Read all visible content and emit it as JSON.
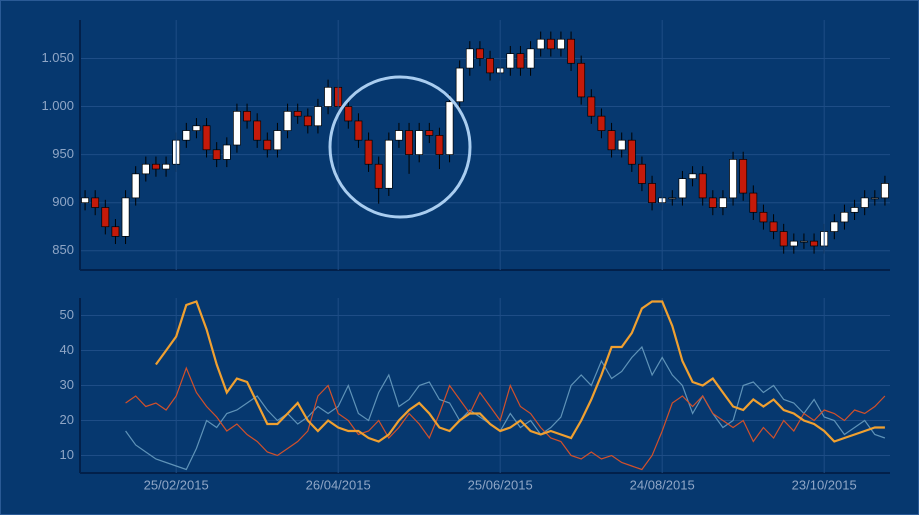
{
  "chart_data": [
    {
      "type": "candlestick",
      "up_color": "#ffffff",
      "down_color": "#c41a0a",
      "grid": true,
      "ylim": [
        830,
        1090
      ],
      "yticks": [
        850,
        900,
        950,
        {
          "value": 1000,
          "label": "1.000"
        },
        {
          "value": 1050,
          "label": "1.050"
        }
      ],
      "open": [
        900,
        905,
        895,
        875,
        865,
        905,
        930,
        940,
        935,
        940,
        965,
        975,
        980,
        955,
        945,
        960,
        995,
        985,
        965,
        955,
        975,
        995,
        990,
        980,
        1000,
        1020,
        1000,
        985,
        965,
        940,
        915,
        965,
        975,
        950,
        975,
        970,
        950,
        1005,
        1040,
        1060,
        1050,
        1035,
        1040,
        1055,
        1040,
        1060,
        1070,
        1060,
        1070,
        1045,
        1010,
        990,
        975,
        955,
        965,
        940,
        920,
        900,
        905,
        905,
        925,
        930,
        905,
        895,
        905,
        945,
        910,
        890,
        880,
        870,
        855,
        860,
        860,
        855,
        870,
        880,
        890,
        895,
        905,
        905
      ],
      "high": [
        913,
        913,
        903,
        883,
        913,
        938,
        948,
        948,
        948,
        973,
        983,
        988,
        988,
        963,
        968,
        1003,
        1003,
        993,
        973,
        983,
        1003,
        1003,
        998,
        1008,
        1028,
        1028,
        1008,
        993,
        973,
        948,
        973,
        983,
        983,
        983,
        983,
        978,
        1013,
        1048,
        1068,
        1068,
        1058,
        1048,
        1063,
        1063,
        1068,
        1078,
        1078,
        1078,
        1078,
        1053,
        1018,
        998,
        983,
        973,
        973,
        948,
        928,
        913,
        913,
        933,
        938,
        938,
        913,
        913,
        953,
        953,
        918,
        898,
        888,
        878,
        868,
        868,
        868,
        878,
        888,
        898,
        903,
        913,
        913,
        928
      ],
      "low": [
        892,
        887,
        867,
        857,
        857,
        897,
        922,
        927,
        927,
        932,
        957,
        967,
        947,
        937,
        937,
        952,
        977,
        957,
        947,
        947,
        967,
        982,
        972,
        972,
        992,
        992,
        977,
        957,
        932,
        899,
        907,
        957,
        930,
        942,
        962,
        935,
        942,
        997,
        1032,
        1042,
        1027,
        1027,
        1032,
        1032,
        1032,
        1052,
        1052,
        1052,
        1037,
        1002,
        982,
        967,
        947,
        947,
        932,
        912,
        892,
        892,
        897,
        897,
        917,
        897,
        887,
        887,
        897,
        902,
        882,
        872,
        862,
        847,
        847,
        852,
        847,
        847,
        862,
        872,
        882,
        887,
        897,
        897
      ],
      "close": [
        905,
        895,
        875,
        865,
        905,
        930,
        940,
        935,
        940,
        965,
        975,
        980,
        955,
        945,
        960,
        995,
        985,
        965,
        955,
        975,
        995,
        990,
        980,
        1000,
        1020,
        1000,
        985,
        965,
        940,
        915,
        965,
        975,
        950,
        975,
        970,
        950,
        1005,
        1040,
        1060,
        1050,
        1035,
        1040,
        1055,
        1040,
        1060,
        1070,
        1060,
        1070,
        1045,
        1010,
        990,
        975,
        955,
        965,
        940,
        920,
        900,
        905,
        905,
        925,
        930,
        905,
        895,
        905,
        945,
        910,
        890,
        880,
        870,
        855,
        860,
        860,
        855,
        870,
        880,
        890,
        895,
        905,
        905,
        920
      ]
    },
    {
      "type": "line",
      "grid": true,
      "ylim": [
        5,
        55
      ],
      "yticks": [
        10,
        20,
        30,
        40,
        50
      ],
      "categories": [
        null,
        null,
        null,
        null,
        null,
        null,
        null,
        null,
        null,
        "25/02/2015",
        null,
        null,
        null,
        null,
        null,
        null,
        null,
        null,
        null,
        null,
        null,
        null,
        null,
        null,
        null,
        "26/04/2015",
        null,
        null,
        null,
        null,
        null,
        null,
        null,
        null,
        null,
        null,
        null,
        null,
        null,
        null,
        null,
        "25/06/2015",
        null,
        null,
        null,
        null,
        null,
        null,
        null,
        null,
        null,
        null,
        null,
        null,
        null,
        null,
        null,
        "24/08/2015",
        null,
        null,
        null,
        null,
        null,
        null,
        null,
        null,
        null,
        null,
        null,
        null,
        null,
        null,
        null,
        "23/10/2015",
        null,
        null,
        null,
        null,
        null,
        null
      ],
      "series": [
        {
          "color": "#5f93b8",
          "values": [
            null,
            null,
            null,
            null,
            17,
            13,
            11,
            9,
            8,
            7,
            6,
            12,
            20,
            18,
            22,
            23,
            25,
            27,
            23,
            20,
            22,
            19,
            21,
            24,
            22,
            24,
            30,
            22,
            20,
            28,
            33,
            24,
            26,
            30,
            31,
            26,
            25,
            20,
            23,
            21,
            19,
            17,
            22,
            18,
            20,
            16,
            18,
            21,
            30,
            33,
            30,
            37,
            32,
            34,
            38,
            41,
            33,
            38,
            33,
            30,
            22,
            27,
            22,
            18,
            20,
            30,
            31,
            28,
            30,
            26,
            25,
            22,
            26,
            21,
            20,
            16,
            18,
            20,
            16,
            15
          ]
        },
        {
          "color": "#d2502a",
          "values": [
            null,
            null,
            null,
            null,
            25,
            27,
            24,
            25,
            23,
            27,
            35,
            28,
            24,
            21,
            17,
            19,
            16,
            14,
            11,
            10,
            12,
            14,
            17,
            27,
            30,
            22,
            20,
            16,
            17,
            20,
            15,
            18,
            22,
            19,
            15,
            22,
            30,
            26,
            22,
            28,
            24,
            20,
            30,
            24,
            22,
            18,
            15,
            14,
            10,
            9,
            11,
            9,
            10,
            8,
            7,
            6,
            10,
            17,
            25,
            27,
            24,
            27,
            22,
            20,
            18,
            20,
            14,
            18,
            15,
            20,
            17,
            22,
            20,
            23,
            22,
            20,
            23,
            22,
            24,
            27
          ]
        },
        {
          "color": "#f0a030",
          "values": [
            null,
            null,
            null,
            null,
            null,
            null,
            null,
            36,
            40,
            44,
            53,
            54,
            46,
            36,
            28,
            32,
            31,
            25,
            19,
            19,
            22,
            25,
            20,
            17,
            20,
            18,
            17,
            17,
            15,
            14,
            16,
            20,
            23,
            25,
            22,
            18,
            17,
            20,
            22,
            22,
            19,
            17,
            18,
            20,
            17,
            16,
            17,
            16,
            15,
            20,
            26,
            33,
            41,
            41,
            45,
            52,
            54,
            54,
            47,
            37,
            31,
            30,
            32,
            28,
            24,
            23,
            26,
            24,
            26,
            23,
            22,
            20,
            19,
            17,
            14,
            15,
            16,
            17,
            18,
            18
          ]
        }
      ]
    }
  ]
}
